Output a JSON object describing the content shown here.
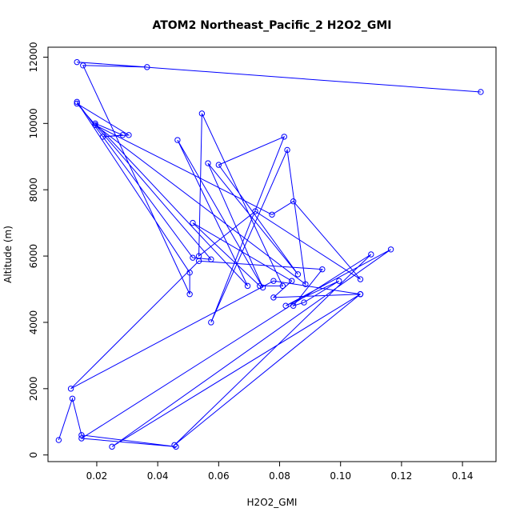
{
  "chart_data": {
    "type": "line",
    "title": "ATOM2 Northeast_Pacific_2 H2O2_GMI",
    "xlabel": "H2O2_GMI",
    "ylabel": "Altitude (m)",
    "xlim": [
      0.004,
      0.151
    ],
    "ylim": [
      -200,
      12300
    ],
    "xticks": [
      0.02,
      0.04,
      0.06,
      0.08,
      0.1,
      0.12,
      0.14
    ],
    "xtick_labels": [
      "0.02",
      "0.04",
      "0.06",
      "0.08",
      "0.10",
      "0.12",
      "0.14"
    ],
    "yticks": [
      0,
      2000,
      4000,
      6000,
      8000,
      10000,
      12000
    ],
    "ytick_labels": [
      "0",
      "2000",
      "4000",
      "6000",
      "8000",
      "10000",
      "12000"
    ],
    "grid": false,
    "legend": "none",
    "marker": "open-circle",
    "color": "#0000ff",
    "series": [
      {
        "x": [
          0.146,
          0.0135,
          0.0365,
          0.0155,
          0.0505,
          0.0505,
          0.0135,
          0.0515,
          0.0575,
          0.0135,
          0.0305,
          0.022,
          0.0285,
          0.0195,
          0.0695,
          0.0465,
          0.0745,
          0.0565,
          0.086,
          0.06,
          0.0815,
          0.0575,
          0.0825,
          0.0885,
          0.0195,
          0.0775,
          0.0845,
          0.1065,
          0.072,
          0.0535,
          0.0545,
          0.081,
          0.0735,
          0.0515,
          0.084,
          0.078,
          0.1065,
          0.078,
          0.0115,
          0.0535,
          0.094,
          0.0845,
          0.088,
          0.0995,
          0.082,
          0.1165,
          0.025,
          0.1065,
          0.0455,
          0.11,
          0.015,
          0.046,
          0.015,
          0.012,
          0.0075
        ],
        "y": [
          10950,
          11850,
          11700,
          11750,
          4850,
          5500,
          10650,
          5950,
          5900,
          10600,
          9650,
          9600,
          9650,
          10000,
          5100,
          9500,
          5050,
          8800,
          5450,
          8750,
          9600,
          4000,
          9200,
          5150,
          9950,
          7250,
          7650,
          5300,
          7350,
          6000,
          10300,
          5100,
          5100,
          7000,
          5250,
          4750,
          4850,
          5250,
          2000,
          5850,
          5600,
          4500,
          4600,
          5250,
          4500,
          6200,
          250,
          4850,
          300,
          6050,
          500,
          250,
          600,
          1700,
          450
        ]
      }
    ]
  }
}
